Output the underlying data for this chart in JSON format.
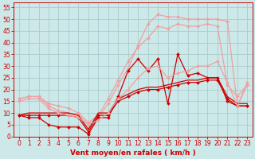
{
  "background_color": "#cce8e8",
  "grid_color": "#aacccc",
  "x_values": [
    0,
    1,
    2,
    3,
    4,
    5,
    6,
    7,
    8,
    9,
    10,
    11,
    12,
    13,
    14,
    15,
    16,
    17,
    18,
    19,
    20,
    21,
    22,
    23
  ],
  "series": [
    {
      "name": "light_upper1",
      "color": "#f0a0a0",
      "linewidth": 0.9,
      "marker": "D",
      "markersize": 2.0,
      "y": [
        16,
        17,
        17,
        13,
        11,
        10,
        9,
        5,
        8,
        14,
        22,
        29,
        39,
        48,
        52,
        51,
        51,
        50,
        50,
        50,
        50,
        49,
        13,
        23
      ]
    },
    {
      "name": "light_upper2",
      "color": "#f0a0a0",
      "linewidth": 0.9,
      "marker": "D",
      "markersize": 2.0,
      "y": [
        16,
        17,
        17,
        14,
        13,
        12,
        10,
        6,
        9,
        16,
        24,
        32,
        38,
        42,
        47,
        46,
        48,
        47,
        47,
        48,
        47,
        22,
        17,
        22
      ]
    },
    {
      "name": "dark_spiky",
      "color": "#cc0000",
      "linewidth": 0.9,
      "marker": "D",
      "markersize": 2.0,
      "y": [
        9,
        8,
        8,
        5,
        4,
        4,
        4,
        1,
        8,
        8,
        17,
        28,
        33,
        28,
        33,
        14,
        35,
        26,
        27,
        25,
        25,
        15,
        13,
        13
      ]
    },
    {
      "name": "dark_linear1",
      "color": "#cc0000",
      "linewidth": 0.9,
      "marker": "D",
      "markersize": 2.0,
      "y": [
        9,
        9,
        9,
        9,
        9,
        9,
        8,
        2,
        9,
        9,
        15,
        17,
        19,
        20,
        20,
        21,
        22,
        23,
        23,
        24,
        24,
        16,
        13,
        13
      ]
    },
    {
      "name": "dark_linear2",
      "color": "#cc0000",
      "linewidth": 0.9,
      "marker": null,
      "markersize": 0,
      "y": [
        9,
        10,
        10,
        10,
        10,
        10,
        9,
        3,
        10,
        10,
        16,
        18,
        20,
        21,
        21,
        22,
        23,
        24,
        24,
        25,
        25,
        17,
        14,
        14
      ]
    },
    {
      "name": "light_lower",
      "color": "#f0a0a0",
      "linewidth": 0.9,
      "marker": "D",
      "markersize": 2.0,
      "y": [
        15,
        16,
        16,
        12,
        10,
        9,
        8,
        5,
        7,
        10,
        16,
        20,
        25,
        29,
        30,
        25,
        27,
        28,
        30,
        30,
        32,
        23,
        13,
        22
      ]
    }
  ],
  "xlabel": "Vent moyen/en rafales ( km/h )",
  "xlim": [
    -0.5,
    23.5
  ],
  "ylim": [
    0,
    57
  ],
  "yticks": [
    0,
    5,
    10,
    15,
    20,
    25,
    30,
    35,
    40,
    45,
    50,
    55
  ],
  "xticks": [
    0,
    1,
    2,
    3,
    4,
    5,
    6,
    7,
    8,
    9,
    10,
    11,
    12,
    13,
    14,
    15,
    16,
    17,
    18,
    19,
    20,
    21,
    22,
    23
  ],
  "tick_fontsize": 5.5,
  "label_fontsize": 6.5
}
